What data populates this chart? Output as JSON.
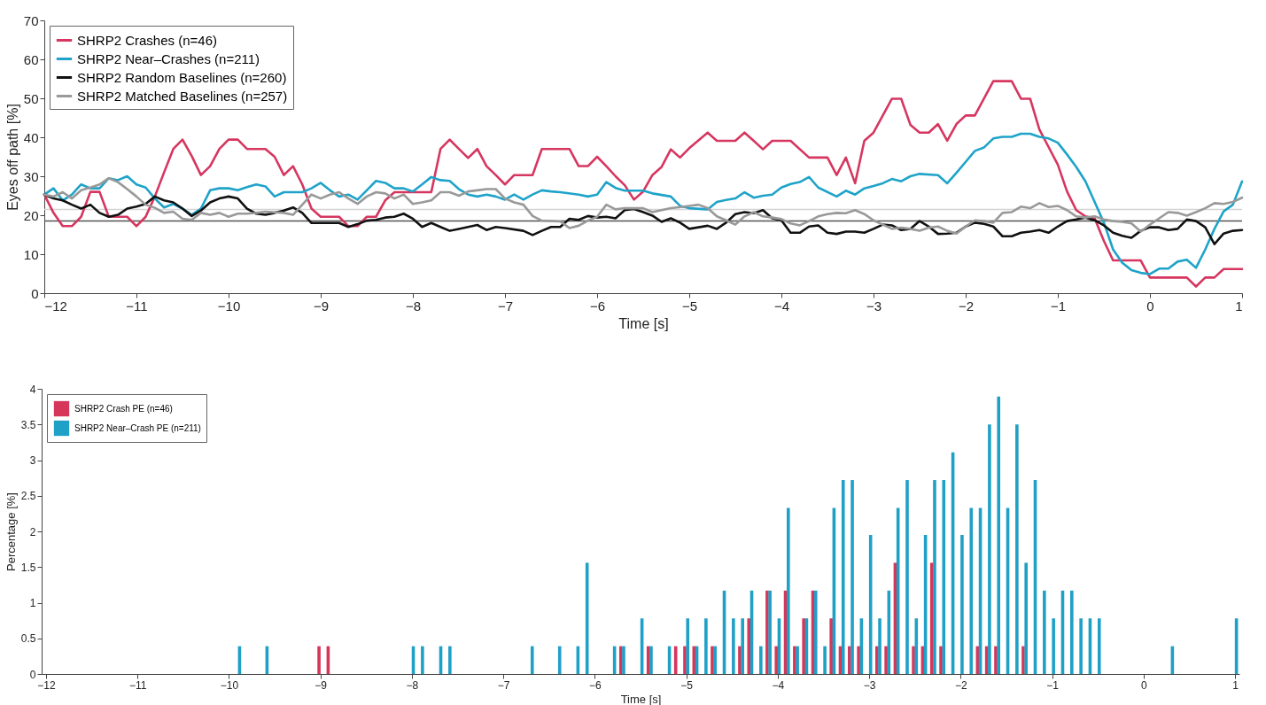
{
  "chart_data": [
    {
      "type": "line",
      "xlabel": "Time [s]",
      "ylabel": "Eyes off path [%]",
      "xlim": [
        -12,
        1
      ],
      "ylim": [
        0,
        70
      ],
      "xticks": [
        -12,
        -11,
        -10,
        -9,
        -8,
        -7,
        -6,
        -5,
        -4,
        -3,
        -2,
        -1,
        0,
        1
      ],
      "yticks": [
        0,
        10,
        20,
        30,
        40,
        50,
        60,
        70
      ],
      "legend": "top left",
      "ref_lines": [
        {
          "axis": "y",
          "value": 21.5,
          "color": "#d4d4d4"
        },
        {
          "axis": "y",
          "value": 18.5,
          "color": "#555555"
        }
      ],
      "series": [
        {
          "name": "SHRP2 Crashes (n=46)",
          "color": "#d6365f",
          "x": [
            -12,
            -11.9,
            -11.8,
            -11.7,
            -11.6,
            -11.5,
            -11.4,
            -11.3,
            -11.1,
            -11,
            -10.9,
            -10.8,
            -10.7,
            -10.6,
            -10.5,
            -10.4,
            -10.3,
            -10.2,
            -10.1,
            -10,
            -9.9,
            -9.8,
            -9.6,
            -9.5,
            -9.4,
            -9.3,
            -9.2,
            -9.1,
            -9,
            -8.8,
            -8.7,
            -8.6,
            -8.5,
            -8.4,
            -8.3,
            -8.2,
            -8,
            -7.9,
            -7.8,
            -7.7,
            -7.6,
            -7.5,
            -7.4,
            -7.3,
            -7.2,
            -7.1,
            -7,
            -6.9,
            -6.8,
            -6.7,
            -6.6,
            -6.4,
            -6.3,
            -6.2,
            -6.1,
            -6,
            -5.9,
            -5.8,
            -5.7,
            -5.6,
            -5.5,
            -5.4,
            -5.3,
            -5.2,
            -5.1,
            -5,
            -4.8,
            -4.7,
            -4.5,
            -4.4,
            -4.3,
            -4.2,
            -4.1,
            -3.9,
            -3.7,
            -3.5,
            -3.4,
            -3.3,
            -3.2,
            -3.1,
            -3,
            -2.8,
            -2.7,
            -2.6,
            -2.5,
            -2.4,
            -2.3,
            -2.2,
            -2.1,
            -2,
            -1.9,
            -1.7,
            -1.5,
            -1.4,
            -1.3,
            -1.2,
            -1.1,
            -1,
            -0.9,
            -0.8,
            -0.7,
            -0.6,
            -0.5,
            -0.4,
            -0.1,
            0,
            0.4,
            0.5,
            0.6,
            0.7,
            0.8,
            1
          ],
          "values": [
            25.3,
            20.6,
            17.2,
            17.2,
            19.6,
            26,
            26,
            19.6,
            19.6,
            17.2,
            19.6,
            24.8,
            31,
            37,
            39.4,
            35.2,
            30.3,
            32.6,
            37,
            39.4,
            39.4,
            37,
            37,
            35,
            30.3,
            32.6,
            27.9,
            21.7,
            19.6,
            19.6,
            17.2,
            17.2,
            19.6,
            19.6,
            23.8,
            25.9,
            25.9,
            25.9,
            25.9,
            37,
            39.4,
            37,
            34.7,
            37,
            32.6,
            30.3,
            27.9,
            30.3,
            30.3,
            30.3,
            37,
            37,
            37,
            32.6,
            32.6,
            35,
            32.6,
            30,
            27.7,
            24,
            26.1,
            30.3,
            32.4,
            36.9,
            34.8,
            37.2,
            41.2,
            39.1,
            39.1,
            41.2,
            39.1,
            36.9,
            39.1,
            39.1,
            34.8,
            34.8,
            30.3,
            34.8,
            28.2,
            39.1,
            41.2,
            49.9,
            49.9,
            43.2,
            41.2,
            41.2,
            43.4,
            39.1,
            43.4,
            45.6,
            45.6,
            54.4,
            54.4,
            49.9,
            49.9,
            42,
            37.5,
            33,
            26.1,
            21.3,
            19.7,
            19.2,
            13.4,
            8.4,
            8.4,
            4,
            4,
            1.7,
            4,
            4,
            6.2,
            6.2
          ]
        },
        {
          "name": "SHRP2 Near–Crashes (n=211)",
          "color": "#1fa3c9",
          "x": [
            -12,
            -11.9,
            -11.8,
            -11.7,
            -11.6,
            -11.5,
            -11.4,
            -11.3,
            -11.2,
            -11.1,
            -11,
            -10.9,
            -10.8,
            -10.7,
            -10.6,
            -10.5,
            -10.4,
            -10.3,
            -10.2,
            -10.1,
            -10,
            -9.9,
            -9.8,
            -9.7,
            -9.6,
            -9.5,
            -9.4,
            -9.2,
            -9.1,
            -9,
            -8.9,
            -8.8,
            -8.7,
            -8.6,
            -8.5,
            -8.4,
            -8.3,
            -8.2,
            -8.1,
            -8,
            -7.9,
            -7.8,
            -7.7,
            -7.6,
            -7.5,
            -7.4,
            -7.3,
            -7.2,
            -7.1,
            -7,
            -6.9,
            -6.8,
            -6.7,
            -6.6,
            -6.5,
            -6.4,
            -6.2,
            -6.1,
            -6,
            -5.9,
            -5.8,
            -5.7,
            -5.5,
            -5.4,
            -5.2,
            -5.1,
            -5,
            -4.8,
            -4.7,
            -4.6,
            -4.5,
            -4.4,
            -4.3,
            -4.2,
            -4.1,
            -4,
            -3.9,
            -3.8,
            -3.7,
            -3.6,
            -3.4,
            -3.3,
            -3.2,
            -3.1,
            -3,
            -2.9,
            -2.8,
            -2.7,
            -2.6,
            -2.5,
            -2.3,
            -2.2,
            -2.1,
            -2,
            -1.9,
            -1.8,
            -1.7,
            -1.6,
            -1.5,
            -1.4,
            -1.3,
            -1.2,
            -1.1,
            -1,
            -0.9,
            -0.8,
            -0.7,
            -0.6,
            -0.5,
            -0.4,
            -0.3,
            -0.2,
            -0.1,
            0,
            0.1,
            0.2,
            0.3,
            0.4,
            0.5,
            0.6,
            0.7,
            0.8,
            0.9,
            1
          ],
          "values": [
            25.3,
            26.9,
            23.8,
            25.3,
            27.9,
            26.9,
            26.9,
            29.5,
            29,
            30,
            27.9,
            27.1,
            24.3,
            22,
            22.9,
            21.7,
            20.1,
            21.7,
            26.4,
            26.9,
            26.9,
            26.4,
            27.2,
            27.9,
            27.4,
            24.8,
            25.9,
            25.9,
            26.9,
            28.3,
            26.4,
            24.8,
            25.3,
            24,
            26.4,
            28.8,
            28.3,
            26.9,
            26.9,
            26.1,
            27.9,
            29.8,
            29,
            28.8,
            26.7,
            25.3,
            24.8,
            25.3,
            24.8,
            24,
            25.3,
            24,
            25.3,
            26.4,
            26.1,
            25.9,
            25.3,
            24.8,
            25.3,
            28.5,
            27,
            26.3,
            26.3,
            25.6,
            24.8,
            22.4,
            21.8,
            21.5,
            23.4,
            23.9,
            24.3,
            25.9,
            24.5,
            25,
            25.3,
            27.1,
            28,
            28.5,
            29.8,
            27.1,
            24.8,
            26.3,
            25.3,
            26.9,
            27.5,
            28.2,
            29.3,
            28.7,
            30,
            30.6,
            30.3,
            28.2,
            30.9,
            33.7,
            36.5,
            37.4,
            39.7,
            40.1,
            40.1,
            40.9,
            40.9,
            40.1,
            39.7,
            38.6,
            35.6,
            32.4,
            28.7,
            23.4,
            18.1,
            11.2,
            7.8,
            5.9,
            5.2,
            4.9,
            6.3,
            6.3,
            8.1,
            8.6,
            6.5,
            11.2,
            16.5,
            21,
            22.7,
            28.7
          ]
        },
        {
          "name": "SHRP2 Random Baselines (n=260)",
          "color": "#111111",
          "x": [
            -12,
            -11.9,
            -11.8,
            -11.7,
            -11.6,
            -11.5,
            -11.4,
            -11.3,
            -11.2,
            -11.1,
            -11,
            -10.9,
            -10.8,
            -10.7,
            -10.6,
            -10.5,
            -10.4,
            -10.3,
            -10.2,
            -10.1,
            -10,
            -9.9,
            -9.8,
            -9.7,
            -9.6,
            -9.5,
            -9.4,
            -9.3,
            -9.2,
            -9.1,
            -8.8,
            -8.7,
            -8.6,
            -8.5,
            -8.4,
            -8.3,
            -8.2,
            -8.1,
            -8,
            -7.9,
            -7.8,
            -7.7,
            -7.6,
            -7.5,
            -7.4,
            -7.3,
            -7.2,
            -7.1,
            -7,
            -6.8,
            -6.7,
            -6.6,
            -6.5,
            -6.4,
            -6.3,
            -6.2,
            -6.1,
            -6,
            -5.9,
            -5.8,
            -5.7,
            -5.6,
            -5.5,
            -5.4,
            -5.3,
            -5.2,
            -5.1,
            -5,
            -4.8,
            -4.7,
            -4.6,
            -4.5,
            -4.4,
            -4.3,
            -4.2,
            -4.1,
            -4,
            -3.9,
            -3.8,
            -3.7,
            -3.6,
            -3.5,
            -3.4,
            -3.3,
            -3.2,
            -3.1,
            -3,
            -2.9,
            -2.8,
            -2.7,
            -2.6,
            -2.5,
            -2.4,
            -2.3,
            -2.2,
            -2.1,
            -2,
            -1.9,
            -1.8,
            -1.7,
            -1.6,
            -1.5,
            -1.4,
            -1.3,
            -1.2,
            -1.1,
            -1,
            -0.9,
            -0.8,
            -0.7,
            -0.6,
            -0.5,
            -0.4,
            -0.3,
            -0.2,
            -0.1,
            0,
            0.1,
            0.2,
            0.3,
            0.4,
            0.5,
            0.6,
            0.7,
            0.8,
            0.9,
            1
          ],
          "values": [
            25.3,
            24.3,
            23.8,
            22.7,
            21.7,
            22.7,
            20.6,
            19.6,
            20.1,
            21.7,
            22.2,
            22.9,
            24.8,
            23.8,
            23.3,
            21.7,
            19.8,
            21.2,
            23.3,
            24.3,
            24.8,
            24.3,
            21.7,
            20.4,
            20.1,
            20.6,
            21.2,
            22,
            20.6,
            18,
            18,
            17,
            17.7,
            18.6,
            18.8,
            19.4,
            19.6,
            20.4,
            19.1,
            17,
            18,
            17,
            16,
            16.5,
            17,
            17.5,
            16.2,
            17,
            16.7,
            16,
            14.9,
            16,
            17,
            17,
            19.1,
            18.8,
            19.8,
            19.4,
            19.6,
            19.2,
            21.3,
            21.6,
            20.8,
            19.9,
            18.3,
            19.2,
            18.1,
            16.5,
            17.3,
            16.5,
            18.1,
            20.3,
            20.8,
            20.5,
            21.3,
            19.2,
            18.7,
            15.5,
            15.5,
            17.1,
            17.4,
            15.5,
            15.2,
            15.8,
            15.8,
            15.5,
            16.5,
            17.6,
            17.4,
            16.2,
            16.5,
            18.5,
            17.1,
            15.2,
            15.3,
            15.5,
            17.1,
            18.1,
            17.8,
            17.1,
            14.6,
            14.6,
            15.5,
            15.8,
            16.2,
            15.5,
            17.1,
            18.5,
            18.9,
            19.4,
            18.7,
            17.4,
            15.5,
            14.7,
            14.2,
            16,
            16.9,
            16.9,
            16.2,
            16.5,
            18.9,
            18.5,
            16.9,
            12.6,
            15.3,
            16,
            16.2
          ]
        },
        {
          "name": "SHRP2 Matched Baselines (n=257)",
          "color": "#999999",
          "x": [
            -12,
            -11.9,
            -11.8,
            -11.7,
            -11.6,
            -11.5,
            -11.4,
            -11.3,
            -11.2,
            -11.1,
            -11,
            -10.9,
            -10.8,
            -10.7,
            -10.6,
            -10.5,
            -10.4,
            -10.3,
            -10.2,
            -10.1,
            -10,
            -9.9,
            -9.8,
            -9.7,
            -9.6,
            -9.4,
            -9.3,
            -9.2,
            -9.1,
            -9,
            -8.9,
            -8.8,
            -8.7,
            -8.6,
            -8.5,
            -8.4,
            -8.3,
            -8.2,
            -8.1,
            -8,
            -7.9,
            -7.8,
            -7.7,
            -7.6,
            -7.5,
            -7.4,
            -7.3,
            -7.2,
            -7.1,
            -7,
            -6.9,
            -6.8,
            -6.7,
            -6.6,
            -6.4,
            -6.3,
            -6.2,
            -6.1,
            -6,
            -5.9,
            -5.8,
            -5.7,
            -5.5,
            -5.4,
            -5.2,
            -5,
            -4.9,
            -4.8,
            -4.7,
            -4.6,
            -4.5,
            -4.4,
            -4.3,
            -4.2,
            -4.1,
            -4,
            -3.9,
            -3.8,
            -3.7,
            -3.6,
            -3.5,
            -3.4,
            -3.3,
            -3.2,
            -3.1,
            -3,
            -2.9,
            -2.8,
            -2.7,
            -2.6,
            -2.5,
            -2.4,
            -2.3,
            -2.2,
            -2.1,
            -2,
            -1.9,
            -1.8,
            -1.7,
            -1.6,
            -1.5,
            -1.4,
            -1.3,
            -1.2,
            -1.1,
            -1,
            -0.9,
            -0.8,
            -0.7,
            -0.6,
            -0.5,
            -0.4,
            -0.3,
            -0.2,
            -0.1,
            0,
            0.1,
            0.2,
            0.3,
            0.4,
            0.5,
            0.6,
            0.7,
            0.8,
            0.9,
            1
          ],
          "values": [
            25.3,
            24.8,
            25.9,
            24.3,
            26.4,
            27.1,
            27.9,
            29.5,
            28.5,
            26.7,
            24.8,
            22.7,
            21.9,
            20.6,
            20.9,
            19.1,
            18.8,
            20.6,
            20.1,
            20.6,
            19.6,
            20.4,
            20.4,
            20.6,
            20.9,
            20.6,
            20.1,
            22.7,
            25.3,
            24.3,
            25.3,
            25.9,
            24.3,
            22.9,
            24.8,
            25.9,
            25.6,
            24.3,
            25.3,
            22.9,
            23.3,
            23.8,
            25.9,
            25.9,
            25,
            26.1,
            26.4,
            26.7,
            26.7,
            24.3,
            23.3,
            22.7,
            19.8,
            18.6,
            18.4,
            16.7,
            17.3,
            18.6,
            19.6,
            22.7,
            21.5,
            21.8,
            21.8,
            20.8,
            21.8,
            22.4,
            22.7,
            21.8,
            19.7,
            18.7,
            17.6,
            19.7,
            20.8,
            19.7,
            19.4,
            19,
            17.9,
            17.4,
            18.5,
            19.7,
            20.3,
            20.6,
            20.5,
            21.3,
            20.3,
            18.7,
            17.6,
            16.5,
            16.8,
            16.5,
            16,
            16.8,
            17.1,
            16,
            15.3,
            17.1,
            18.7,
            18.5,
            18.1,
            20.6,
            20.8,
            22.2,
            21.8,
            23.1,
            22.1,
            22.4,
            21.3,
            19.7,
            19.4,
            19.7,
            18.9,
            18.5,
            18.3,
            17.9,
            15.8,
            17.6,
            19.2,
            20.8,
            20.6,
            19.9,
            20.8,
            21.8,
            23.1,
            22.9,
            23.4,
            24.5
          ]
        }
      ]
    },
    {
      "type": "bar",
      "xlabel": "Time [s]",
      "ylabel": "Percentage [%]",
      "xlim": [
        -12,
        1
      ],
      "ylim": [
        0,
        4
      ],
      "xticks": [
        -12,
        -11,
        -10,
        -9,
        -8,
        -7,
        -6,
        -5,
        -4,
        -3,
        -2,
        -1,
        0,
        1
      ],
      "yticks": [
        0,
        0.5,
        1,
        1.5,
        2,
        2.5,
        3,
        3.5,
        4
      ],
      "legend": "top left",
      "series": [
        {
          "name": "SHRP2 Crash PE (n=46)",
          "color": "#d6365a",
          "x": [
            -9,
            -8.9,
            -5.7,
            -5.4,
            -5.1,
            -5,
            -4.9,
            -4.7,
            -4.4,
            -4.3,
            -4.1,
            -4,
            -3.9,
            -3.8,
            -3.7,
            -3.6,
            -3.4,
            -3.3,
            -3.2,
            -3.1,
            -2.9,
            -2.8,
            -2.7,
            -2.5,
            -2.4,
            -2.3,
            -2.2,
            -1.8,
            -1.7,
            -1.6,
            -1.3
          ],
          "values": [
            0.39,
            0.39,
            0.39,
            0.39,
            0.39,
            0.39,
            0.39,
            0.39,
            0.39,
            0.78,
            1.17,
            0.39,
            1.17,
            0.39,
            0.78,
            1.17,
            0.78,
            0.39,
            0.39,
            0.39,
            0.39,
            0.39,
            1.56,
            0.39,
            0.39,
            1.56,
            0.39,
            0.39,
            0.39,
            0.39,
            0.39
          ]
        },
        {
          "name": "SHRP2 Near–Crash PE (n=211)",
          "color": "#1fa0c6",
          "x": [
            -9.9,
            -9.6,
            -8,
            -7.9,
            -7.7,
            -7.6,
            -6.7,
            -6.4,
            -6.2,
            -6.1,
            -5.8,
            -5.7,
            -5.5,
            -5.4,
            -5.2,
            -5,
            -4.9,
            -4.8,
            -4.7,
            -4.6,
            -4.5,
            -4.4,
            -4.3,
            -4.2,
            -4.1,
            -4,
            -3.9,
            -3.8,
            -3.7,
            -3.6,
            -3.5,
            -3.4,
            -3.3,
            -3.2,
            -3.1,
            -3,
            -2.9,
            -2.8,
            -2.7,
            -2.6,
            -2.5,
            -2.4,
            -2.3,
            -2.2,
            -2.1,
            -2,
            -1.9,
            -1.8,
            -1.7,
            -1.6,
            -1.5,
            -1.4,
            -1.3,
            -1.2,
            -1.1,
            -1,
            -0.9,
            -0.8,
            -0.7,
            -0.6,
            -0.5,
            0.3,
            1
          ],
          "values": [
            0.39,
            0.39,
            0.39,
            0.39,
            0.39,
            0.39,
            0.39,
            0.39,
            0.39,
            1.56,
            0.39,
            0.39,
            0.78,
            0.39,
            0.39,
            0.78,
            0.39,
            0.78,
            0.39,
            1.17,
            0.78,
            0.78,
            1.17,
            0.39,
            1.17,
            0.78,
            2.33,
            0.39,
            0.78,
            1.17,
            0.39,
            2.33,
            2.72,
            2.72,
            0.78,
            1.95,
            0.78,
            1.17,
            2.33,
            2.72,
            0.78,
            1.95,
            2.72,
            2.72,
            3.11,
            1.95,
            2.33,
            2.33,
            3.5,
            3.89,
            2.33,
            3.5,
            1.56,
            2.72,
            1.17,
            0.78,
            1.17,
            1.17,
            0.78,
            0.78,
            0.78,
            0.39,
            0.78
          ]
        }
      ]
    }
  ]
}
